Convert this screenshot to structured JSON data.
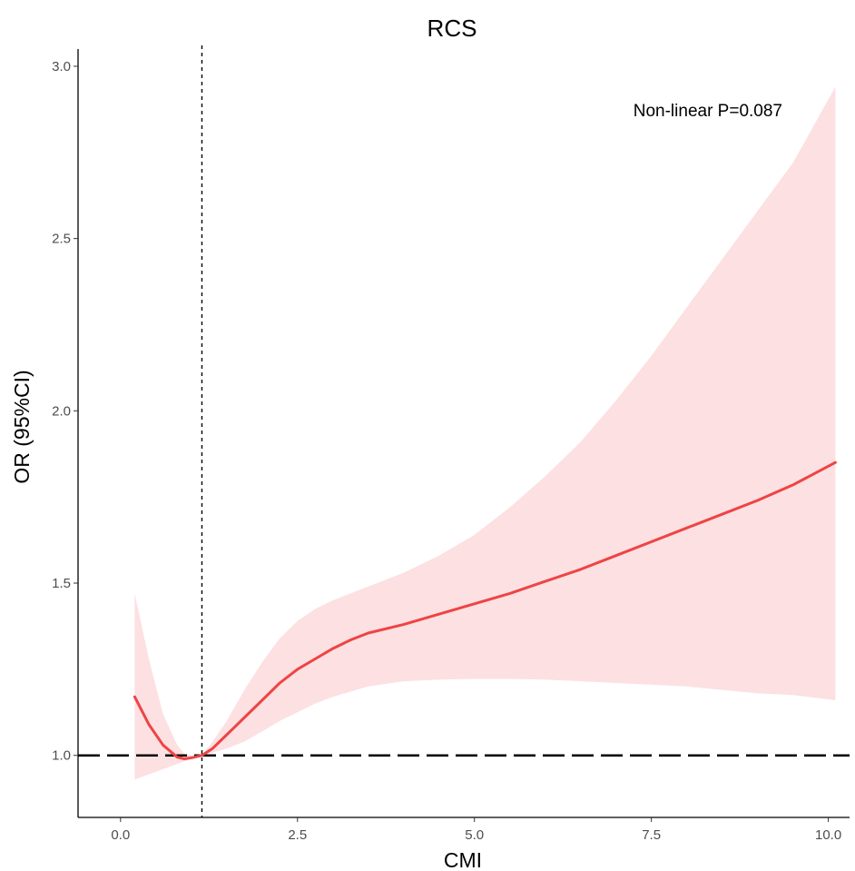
{
  "chart_data": {
    "type": "line",
    "title": "RCS",
    "xlabel": "CMI",
    "ylabel": "OR (95%CI)",
    "xlim": [
      -0.6,
      10.3
    ],
    "ylim": [
      0.82,
      3.05
    ],
    "x_ticks": [
      0.0,
      2.5,
      5.0,
      7.5,
      10.0
    ],
    "x_tick_labels": [
      "0.0",
      "2.5",
      "5.0",
      "7.5",
      "10.0"
    ],
    "y_ticks": [
      1.0,
      1.5,
      2.0,
      2.5,
      3.0
    ],
    "y_tick_labels": [
      "1.0",
      "1.5",
      "2.0",
      "2.5",
      "3.0"
    ],
    "grid": false,
    "annotation": "Non-linear P=0.087",
    "reference_lines": {
      "horizontal_y": 1.0,
      "vertical_x": 1.15
    },
    "colors": {
      "line": "#ee4444",
      "band": "#fde0e2",
      "reference": "#000000",
      "axis": "#000000",
      "tick_label": "#4d4d4d"
    },
    "series": [
      {
        "x": [
          0.2,
          0.4,
          0.6,
          0.8,
          0.9,
          1.0,
          1.15,
          1.3,
          1.5,
          1.75,
          2.0,
          2.25,
          2.5,
          2.75,
          3.0,
          3.25,
          3.5,
          4.0,
          4.5,
          5.0,
          5.5,
          6.0,
          6.5,
          7.0,
          7.5,
          8.0,
          8.5,
          9.0,
          9.5,
          10.1
        ],
        "y": [
          1.17,
          1.09,
          1.03,
          0.995,
          0.99,
          0.993,
          1.0,
          1.02,
          1.06,
          1.11,
          1.16,
          1.21,
          1.25,
          1.28,
          1.31,
          1.335,
          1.355,
          1.38,
          1.41,
          1.44,
          1.47,
          1.505,
          1.54,
          1.58,
          1.62,
          1.66,
          1.7,
          1.74,
          1.785,
          1.85
        ],
        "lower": [
          0.93,
          0.945,
          0.96,
          0.975,
          0.982,
          0.99,
          1.0,
          1.008,
          1.02,
          1.04,
          1.07,
          1.1,
          1.125,
          1.15,
          1.17,
          1.185,
          1.2,
          1.215,
          1.22,
          1.222,
          1.222,
          1.22,
          1.215,
          1.21,
          1.205,
          1.2,
          1.19,
          1.18,
          1.175,
          1.16
        ],
        "upper": [
          1.47,
          1.28,
          1.12,
          1.03,
          1.005,
          1.0,
          1.0,
          1.04,
          1.1,
          1.19,
          1.27,
          1.34,
          1.39,
          1.425,
          1.45,
          1.47,
          1.49,
          1.53,
          1.58,
          1.64,
          1.72,
          1.81,
          1.91,
          2.03,
          2.16,
          2.3,
          2.44,
          2.58,
          2.72,
          2.94
        ]
      }
    ]
  }
}
